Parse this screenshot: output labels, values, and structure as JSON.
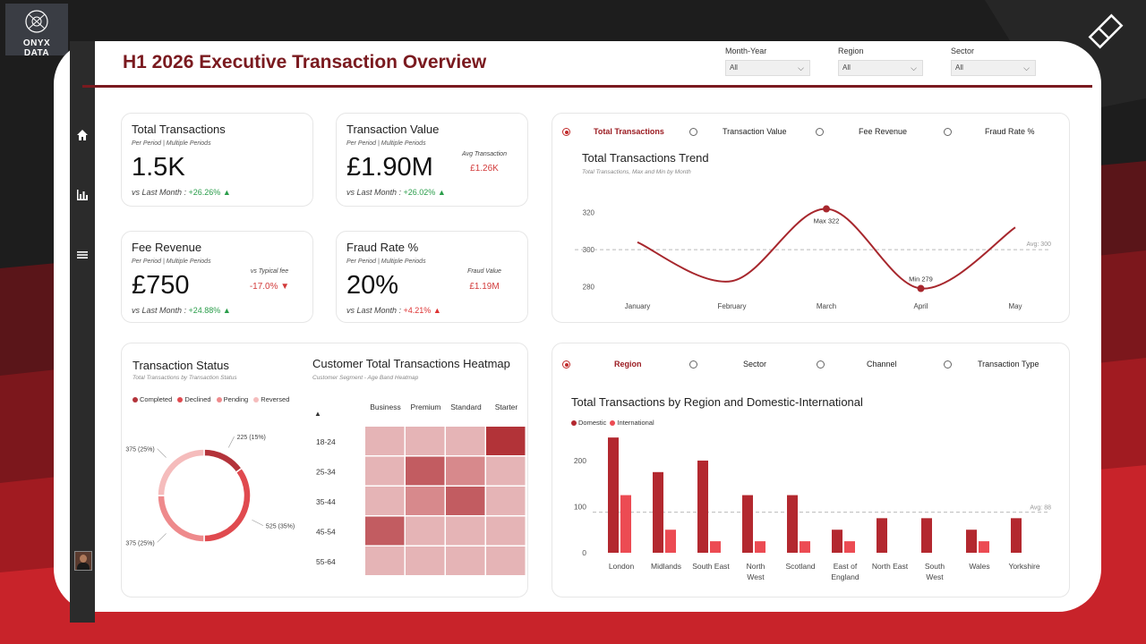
{
  "brand": {
    "line1": "ONYX",
    "line2": "DATA"
  },
  "header": {
    "title": "H1 2026 Executive Transaction Overview"
  },
  "filters": [
    {
      "label": "Month-Year",
      "value": "All"
    },
    {
      "label": "Region",
      "value": "All"
    },
    {
      "label": "Sector",
      "value": "All"
    }
  ],
  "nav": {
    "home_icon": "home-icon",
    "chart_icon": "bar-chart-icon",
    "menu_icon": "menu-icon"
  },
  "kpis": {
    "total_transactions": {
      "title": "Total Transactions",
      "sub": "Per Period  |  Multiple Periods",
      "value": "1.5K",
      "foot": "vs Last Month : ",
      "delta": "+26.26%",
      "arrow": "▲"
    },
    "transaction_value": {
      "title": "Transaction Value",
      "sub": "Per Period  |  Multiple Periods",
      "value": "£1.90M",
      "foot": "vs Last Month : ",
      "delta": "+26.02%",
      "arrow": "▲",
      "side_label": "Avg Transaction",
      "side_value": "£1.26K"
    },
    "fee_revenue": {
      "title": "Fee Revenue",
      "sub": "Per Period  |  Multiple Periods",
      "value": "£750",
      "foot": "vs Last Month : ",
      "delta": "+24.88%",
      "arrow": "▲",
      "side_label": "vs Typical fee",
      "side_value": "-17.0% ▼"
    },
    "fraud_rate": {
      "title": "Fraud Rate %",
      "sub": "Per Period  |  Multiple Periods",
      "value": "20%",
      "foot": "vs Last Month : ",
      "delta": "+4.21%",
      "arrow": "▲",
      "side_label": "Fraud Value",
      "side_value": "£1.19M"
    }
  },
  "trend_selector": {
    "options": [
      "Total Transactions",
      "Transaction Value",
      "Fee Revenue",
      "Fraud Rate %"
    ],
    "selected": "Total Transactions"
  },
  "breakdown_selector": {
    "options": [
      "Region",
      "Sector",
      "Channel",
      "Transaction Type"
    ],
    "selected": "Region"
  },
  "colors": {
    "brand": "#7a1a1f",
    "accent": "#c02a2a",
    "positive": "#2a9d4a",
    "negative": "#d33a3a"
  },
  "chart_data": [
    {
      "id": "trend",
      "type": "line",
      "title": "Total Transactions Trend",
      "subtitle": "Total Transactions, Max  and Min  by Month",
      "categories": [
        "January",
        "February",
        "March",
        "April",
        "May"
      ],
      "values": [
        304,
        283,
        322,
        279,
        312
      ],
      "ylim": [
        272,
        330
      ],
      "yticks": [
        280,
        300,
        320
      ],
      "avg": 300,
      "avg_label": "Avg: 300",
      "max_label": "Max  322",
      "min_label": "Min  279"
    },
    {
      "id": "status",
      "type": "pie",
      "title": "Transaction Status",
      "subtitle": "Total Transactions by Transaction Status",
      "categories": [
        "Completed",
        "Declined",
        "Pending",
        "Reversed"
      ],
      "values": [
        225,
        525,
        375,
        375
      ],
      "labels": [
        "225 (15%)",
        "525 (35%)",
        "375 (25%)",
        "375 (25%)"
      ],
      "colors": [
        "#b3333a",
        "#e04a4f",
        "#ee8a8c",
        "#f5bcbc"
      ]
    },
    {
      "id": "heatmap",
      "type": "heatmap",
      "title": "Customer Total Transactions Heatmap",
      "subtitle": "Customer Segment - Age Band Heatmap",
      "sort_icon": "▲",
      "columns": [
        "Business",
        "Premium",
        "Standard",
        "Starter"
      ],
      "rows": [
        "18-24",
        "25-34",
        "35-44",
        "45-54",
        "55-64"
      ],
      "values": [
        [
          1,
          1,
          1,
          4
        ],
        [
          1,
          3,
          2,
          1
        ],
        [
          1,
          2,
          3,
          1
        ],
        [
          3,
          1,
          1,
          1
        ],
        [
          1,
          1,
          1,
          1
        ]
      ]
    },
    {
      "id": "region",
      "type": "bar",
      "title": "Total Transactions by Region and Domestic-International",
      "categories": [
        "London",
        "Midlands",
        "South East",
        "North West",
        "Scotland",
        "East of England",
        "North East",
        "South West",
        "Wales",
        "Yorkshire"
      ],
      "category_lines": [
        [
          "London"
        ],
        [
          "Midlands"
        ],
        [
          "South East"
        ],
        [
          "North",
          "West"
        ],
        [
          "Scotland"
        ],
        [
          "East of",
          "England"
        ],
        [
          "North East"
        ],
        [
          "South",
          "West"
        ],
        [
          "Wales"
        ],
        [
          "Yorkshire"
        ]
      ],
      "series": [
        {
          "name": "Domestic",
          "values": [
            250,
            175,
            200,
            125,
            125,
            50,
            75,
            75,
            50,
            75
          ],
          "color": "#b3282f"
        },
        {
          "name": "International",
          "values": [
            125,
            50,
            25,
            25,
            25,
            25,
            0,
            0,
            25,
            0
          ],
          "color": "#ec4b53"
        }
      ],
      "ylim": [
        0,
        260
      ],
      "yticks": [
        0,
        100,
        200
      ],
      "avg": 88,
      "avg_label": "Avg: 88"
    }
  ]
}
